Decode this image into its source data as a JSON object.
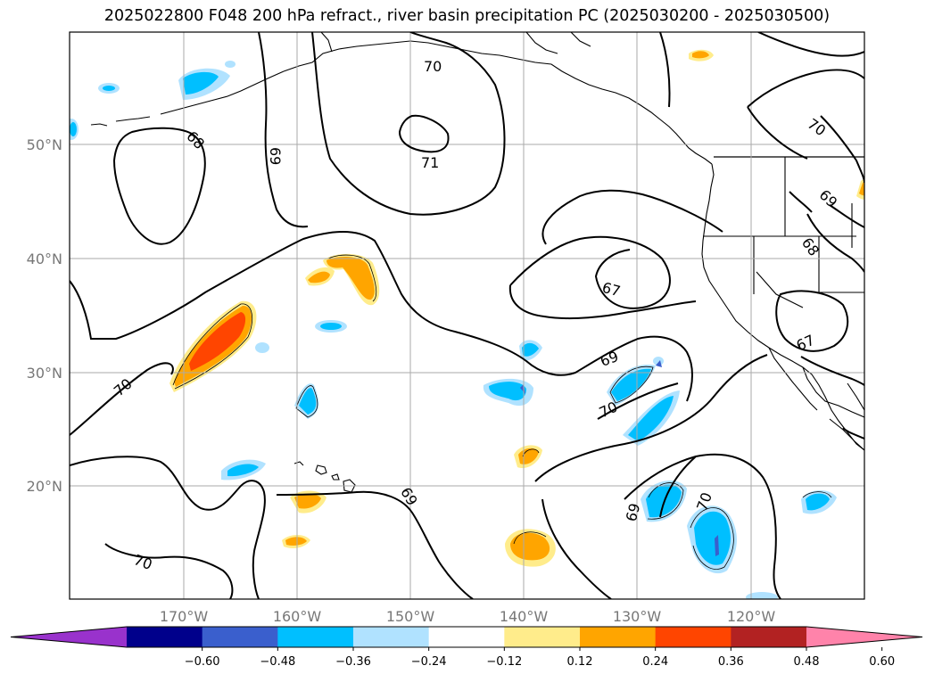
{
  "title": "2025022800 F048 200 hPa refract., river basin precipitation PC (2025030200 - 2025030500)",
  "longitude_ticks": [
    "170°W",
    "160°W",
    "150°W",
    "140°W",
    "130°W",
    "120°W"
  ],
  "latitude_ticks": [
    "50°N",
    "40°N",
    "30°N",
    "20°N"
  ],
  "contour_labels": [
    "70",
    "71",
    "68",
    "69",
    "69",
    "70",
    "67",
    "69",
    "70",
    "70",
    "69",
    "68",
    "67",
    "70",
    "69",
    "70"
  ],
  "colorbar": {
    "colors": [
      "#9932cc",
      "#00008b",
      "#3a5fcd",
      "#00bfff",
      "#b0e2ff",
      "#ffffff",
      "#ffec8b",
      "#ffa500",
      "#ff4500",
      "#b22222",
      "#ff83aa"
    ],
    "ticks": [
      "−0.60",
      "−0.48",
      "−0.36",
      "−0.24",
      "−0.12",
      "0.12",
      "0.24",
      "0.36",
      "0.48",
      "0.60"
    ]
  }
}
